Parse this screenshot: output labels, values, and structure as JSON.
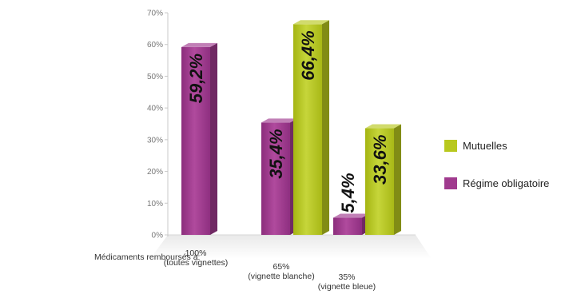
{
  "chart_data": {
    "type": "bar",
    "x_intro_label": "Médicaments remboursés à:",
    "categories": [
      [
        "100%",
        "(toutes vignettes)"
      ],
      [
        "65%",
        "(vignette blanche)"
      ],
      [
        "35%",
        "(vignette bleue)"
      ]
    ],
    "y_ticks": [
      "0%",
      "10%",
      "20%",
      "30%",
      "40%",
      "50%",
      "60%",
      "70%"
    ],
    "ylim": [
      0,
      70
    ],
    "series": [
      {
        "name": "Régime obligatoire",
        "color": "#a03a8e",
        "values": [
          59.2,
          35.4,
          5.4
        ],
        "labels": [
          "59,2%",
          "35,4%",
          "5,4%"
        ]
      },
      {
        "name": "Mutuelles",
        "color": "#b8c81e",
        "values": [
          null,
          66.4,
          33.6
        ],
        "labels": [
          null,
          "66,4%",
          "33,6%"
        ]
      }
    ],
    "legend": [
      {
        "name": "Mutuelles",
        "color": "#b8c81e"
      },
      {
        "name": "Régime obligatoire",
        "color": "#a03a8e"
      }
    ],
    "legend_position": "right",
    "grid": false,
    "style": "3d"
  }
}
